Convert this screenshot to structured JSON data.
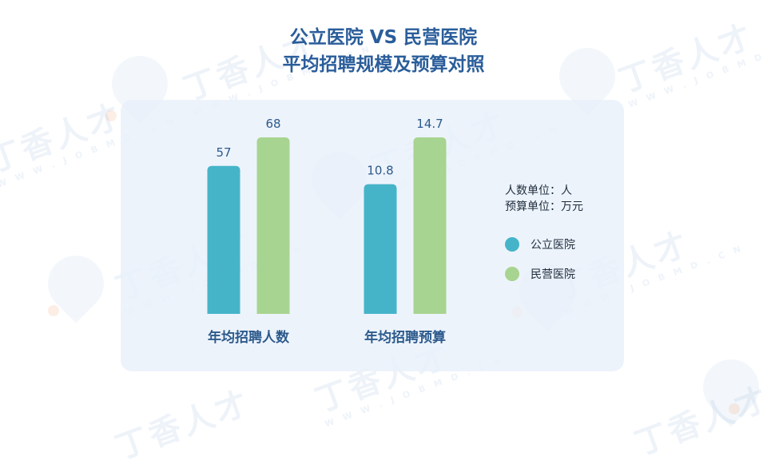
{
  "title": {
    "line1": "公立医院 VS 民营医院",
    "line2": "平均招聘规模及预算对照"
  },
  "units": {
    "people": "人数单位：人",
    "budget": "预算单位：万元"
  },
  "watermark": {
    "cn": "丁香人才",
    "en": "W W W . J O B M D . C N"
  },
  "colors": {
    "public": "#45b4c9",
    "private": "#a7d490",
    "title": "#2a5d9a",
    "label": "#2c5a8c"
  },
  "chart_data": {
    "type": "bar",
    "title": "公立医院 VS 民营医院 平均招聘规模及预算对照",
    "groups": [
      {
        "category": "年均招聘人数",
        "values": [
          57,
          68
        ],
        "labels": [
          "57",
          "68"
        ]
      },
      {
        "category": "年均招聘预算",
        "values": [
          10.8,
          14.7
        ],
        "labels": [
          "10.8",
          "14.7"
        ]
      }
    ],
    "series": [
      {
        "name": "公立医院",
        "color": "#45b4c9"
      },
      {
        "name": "民营医院",
        "color": "#a7d490"
      }
    ],
    "legend": "right",
    "grid": false
  }
}
